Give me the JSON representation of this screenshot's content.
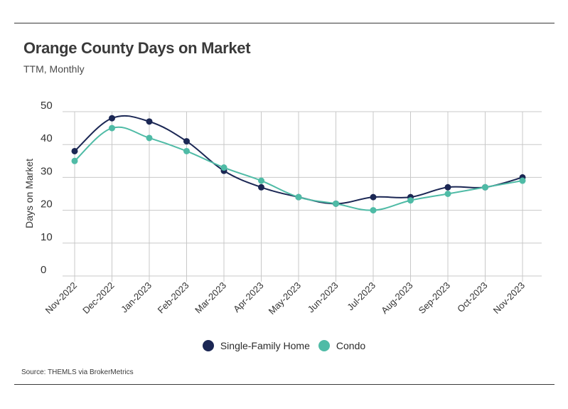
{
  "title": "Orange County Days on Market",
  "subtitle": "TTM, Monthly",
  "source": "Source:  THEMLS via BrokerMetrics",
  "colors": {
    "single_family": "#1b2754",
    "condo": "#4fbba6",
    "grid": "#c8c8c8"
  },
  "chart_data": {
    "type": "line",
    "title": "Orange County Days on Market",
    "subtitle": "TTM, Monthly",
    "xlabel": "",
    "ylabel": "Days on Market",
    "ylim": [
      0,
      50
    ],
    "yticks": [
      0,
      10,
      20,
      30,
      40,
      50
    ],
    "grid": true,
    "legend_position": "bottom",
    "categories": [
      "Nov-2022",
      "Dec-2022",
      "Jan-2023",
      "Feb-2023",
      "Mar-2023",
      "Apr-2023",
      "May-2023",
      "Jun-2023",
      "Jul-2023",
      "Aug-2023",
      "Sep-2023",
      "Oct-2023",
      "Nov-2023"
    ],
    "series": [
      {
        "name": "Single-Family Home",
        "color": "#1b2754",
        "values": [
          38,
          48,
          47,
          41,
          32,
          27,
          24,
          22,
          24,
          24,
          27,
          27,
          30
        ]
      },
      {
        "name": "Condo",
        "color": "#4fbba6",
        "values": [
          35,
          45,
          42,
          38,
          33,
          29,
          24,
          22,
          20,
          23,
          25,
          27,
          29
        ]
      }
    ]
  }
}
